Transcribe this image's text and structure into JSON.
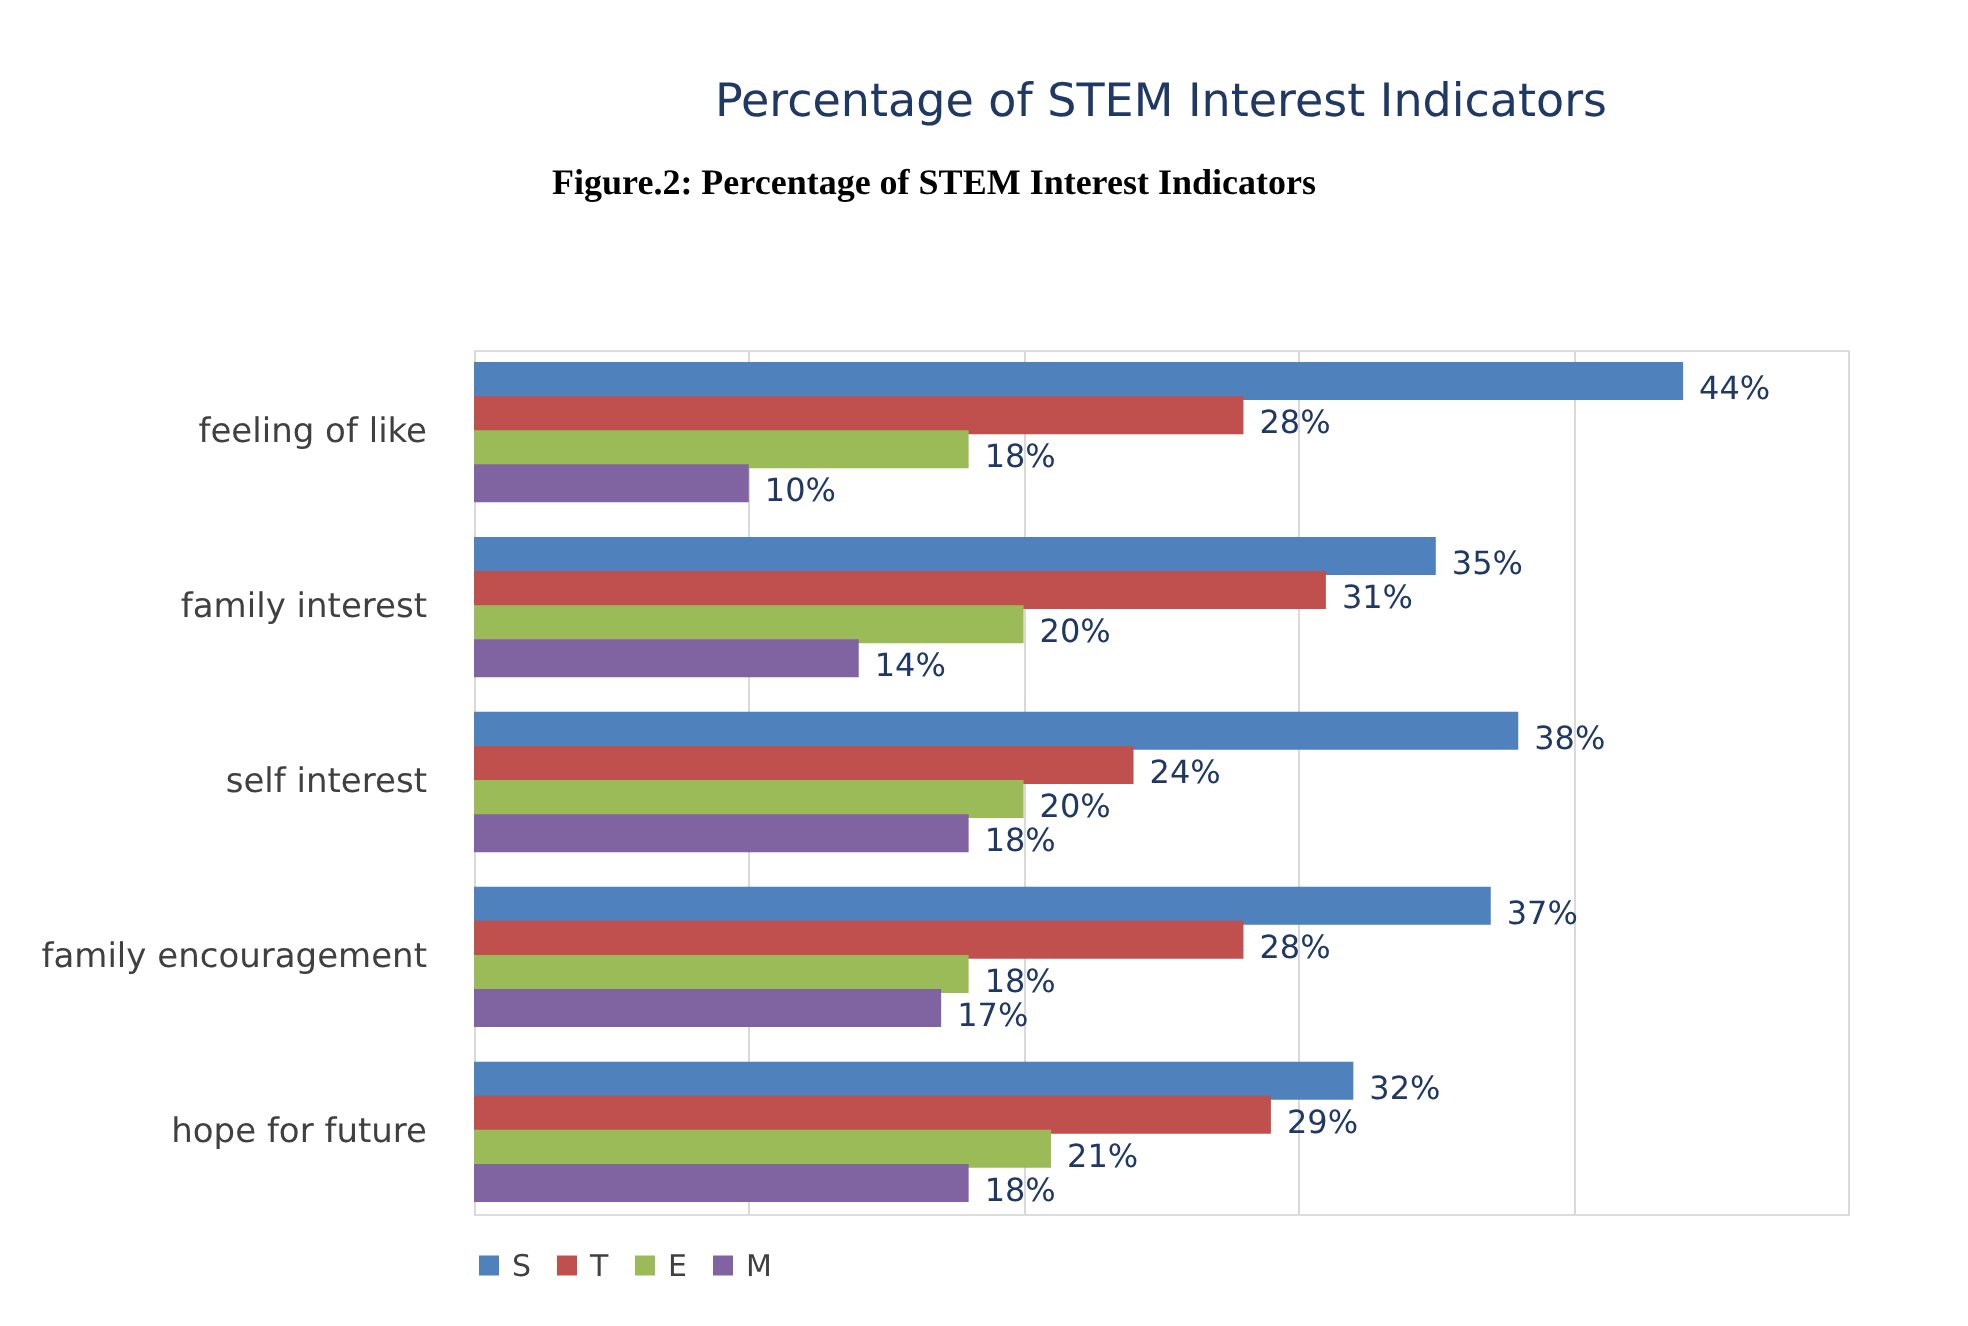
{
  "chart_data": {
    "type": "bar",
    "orientation": "horizontal",
    "title": "Percentage of STEM Interest Indicators",
    "annotations": [
      "Figure.2: Percentage of STEM Interest Indicators"
    ],
    "categories": [
      "feeling of like",
      "family interest",
      "self interest",
      "family encouragement",
      "hope for future"
    ],
    "series": [
      {
        "name": "S",
        "color": "#4f81bd",
        "values": [
          44,
          35,
          38,
          37,
          32
        ],
        "value_labels": [
          "44%",
          "35%",
          "38%",
          "37%",
          "32%"
        ]
      },
      {
        "name": "T",
        "color": "#c0504d",
        "values": [
          28,
          31,
          24,
          28,
          29
        ],
        "value_labels": [
          "28%",
          "31%",
          "24%",
          "28%",
          "29%"
        ]
      },
      {
        "name": "E",
        "color": "#9bbb59",
        "values": [
          18,
          20,
          20,
          18,
          21
        ],
        "value_labels": [
          "18%",
          "20%",
          "20%",
          "18%",
          "21%"
        ]
      },
      {
        "name": "M",
        "color": "#8064a2",
        "values": [
          10,
          14,
          18,
          17,
          18
        ],
        "value_labels": [
          "10%",
          "14%",
          "18%",
          "17%",
          "18%"
        ]
      }
    ],
    "xlim": [
      0,
      50
    ],
    "xticks": [
      {
        "value": 0,
        "label": null
      },
      {
        "value": 10,
        "label": null
      },
      {
        "value": 20,
        "label": null
      },
      {
        "value": 30,
        "label": null
      },
      {
        "value": 40,
        "label": null
      },
      {
        "value": 50,
        "label": null
      }
    ],
    "grid": "x",
    "legend": "bottom",
    "tick_labels": "y"
  }
}
